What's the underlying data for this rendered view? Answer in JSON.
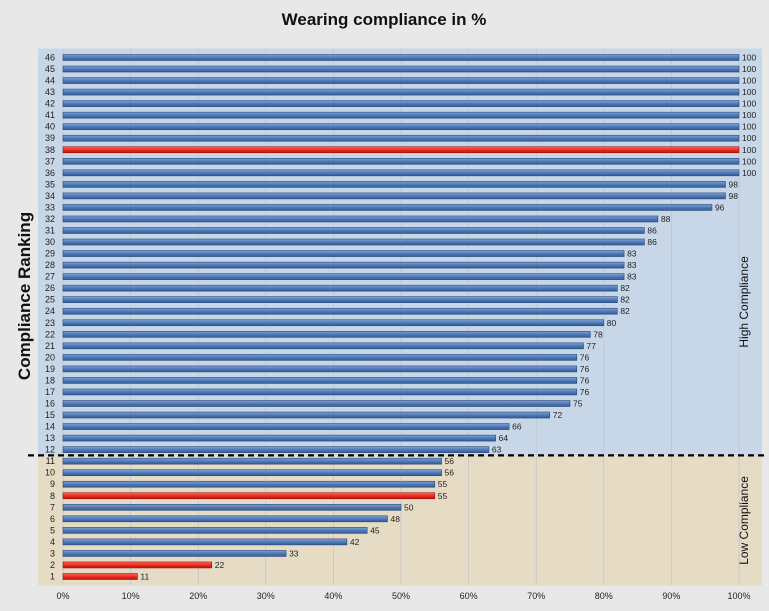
{
  "chart_data": {
    "type": "bar",
    "orientation": "horizontal",
    "title": "Wearing compliance in %",
    "ylabel": "Compliance Ranking",
    "xlabel": "",
    "xlim": [
      0,
      100
    ],
    "x_ticks": [
      "0%",
      "10%",
      "20%",
      "30%",
      "40%",
      "50%",
      "60%",
      "70%",
      "80%",
      "90%",
      "100%"
    ],
    "grid": true,
    "categories": [
      "1",
      "2",
      "3",
      "4",
      "5",
      "6",
      "7",
      "8",
      "9",
      "10",
      "11",
      "12",
      "13",
      "14",
      "15",
      "16",
      "17",
      "18",
      "19",
      "20",
      "21",
      "22",
      "23",
      "24",
      "25",
      "26",
      "27",
      "28",
      "29",
      "30",
      "31",
      "32",
      "33",
      "34",
      "35",
      "36",
      "37",
      "38",
      "39",
      "40",
      "41",
      "42",
      "43",
      "44",
      "45",
      "46"
    ],
    "values": [
      11,
      22,
      33,
      42,
      45,
      48,
      50,
      55,
      55,
      56,
      56,
      63,
      64,
      66,
      72,
      75,
      76,
      76,
      76,
      76,
      77,
      78,
      80,
      82,
      82,
      82,
      83,
      83,
      83,
      86,
      86,
      88,
      96,
      98,
      98,
      100,
      100,
      100,
      100,
      100,
      100,
      100,
      100,
      100,
      100,
      100
    ],
    "highlighted_ranks": [
      "1",
      "2",
      "8",
      "38"
    ],
    "zones": [
      {
        "label": "High Compliance",
        "from_rank": 12,
        "to_rank": 46,
        "color": "#c7d7e8"
      },
      {
        "label": "Low Compliance",
        "from_rank": 1,
        "to_rank": 11,
        "color": "#e6dcc5"
      }
    ],
    "colors": {
      "bar": "#4f7ab8",
      "highlight": "#ee2c22",
      "threshold_line": "#000000"
    }
  }
}
